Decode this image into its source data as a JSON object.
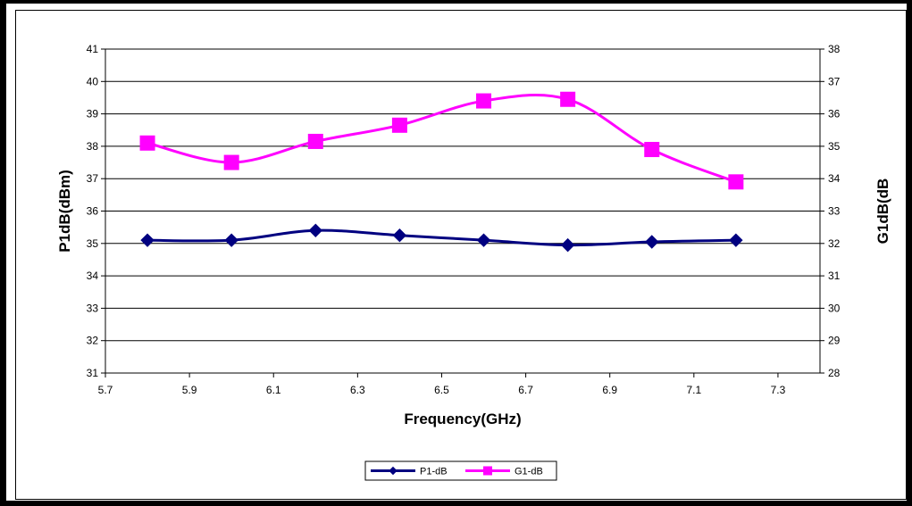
{
  "chart_data": {
    "type": "line",
    "title": "",
    "xlabel": "Frequency(GHz)",
    "ylabel_left": "P1dB(dBm)",
    "ylabel_right": "G1dB(dB",
    "x": [
      5.8,
      6.0,
      6.2,
      6.4,
      6.6,
      6.8,
      7.0,
      7.2
    ],
    "xlim": [
      5.7,
      7.4
    ],
    "x_ticks": [
      "5.7",
      "5.9",
      "6.1",
      "6.3",
      "6.5",
      "6.7",
      "6.9",
      "7.1",
      "7.3"
    ],
    "ylim_left": [
      31,
      41
    ],
    "y_ticks_left": [
      "31",
      "32",
      "33",
      "34",
      "35",
      "36",
      "37",
      "38",
      "39",
      "40",
      "41"
    ],
    "ylim_right": [
      28,
      38
    ],
    "y_ticks_right": [
      "28",
      "29",
      "30",
      "31",
      "32",
      "33",
      "34",
      "35",
      "36",
      "37",
      "38"
    ],
    "grid": "horizontal",
    "legend_position": "bottom",
    "series": [
      {
        "name": "P1-dB",
        "axis": "left",
        "color": "#000080",
        "marker": "diamond",
        "values": [
          35.1,
          35.1,
          35.4,
          35.25,
          35.1,
          34.95,
          35.05,
          35.1
        ]
      },
      {
        "name": "G1-dB",
        "axis": "right",
        "color": "#ff00ff",
        "marker": "square",
        "values": [
          35.1,
          34.5,
          35.15,
          35.65,
          36.4,
          36.45,
          34.9,
          33.9
        ]
      }
    ]
  }
}
